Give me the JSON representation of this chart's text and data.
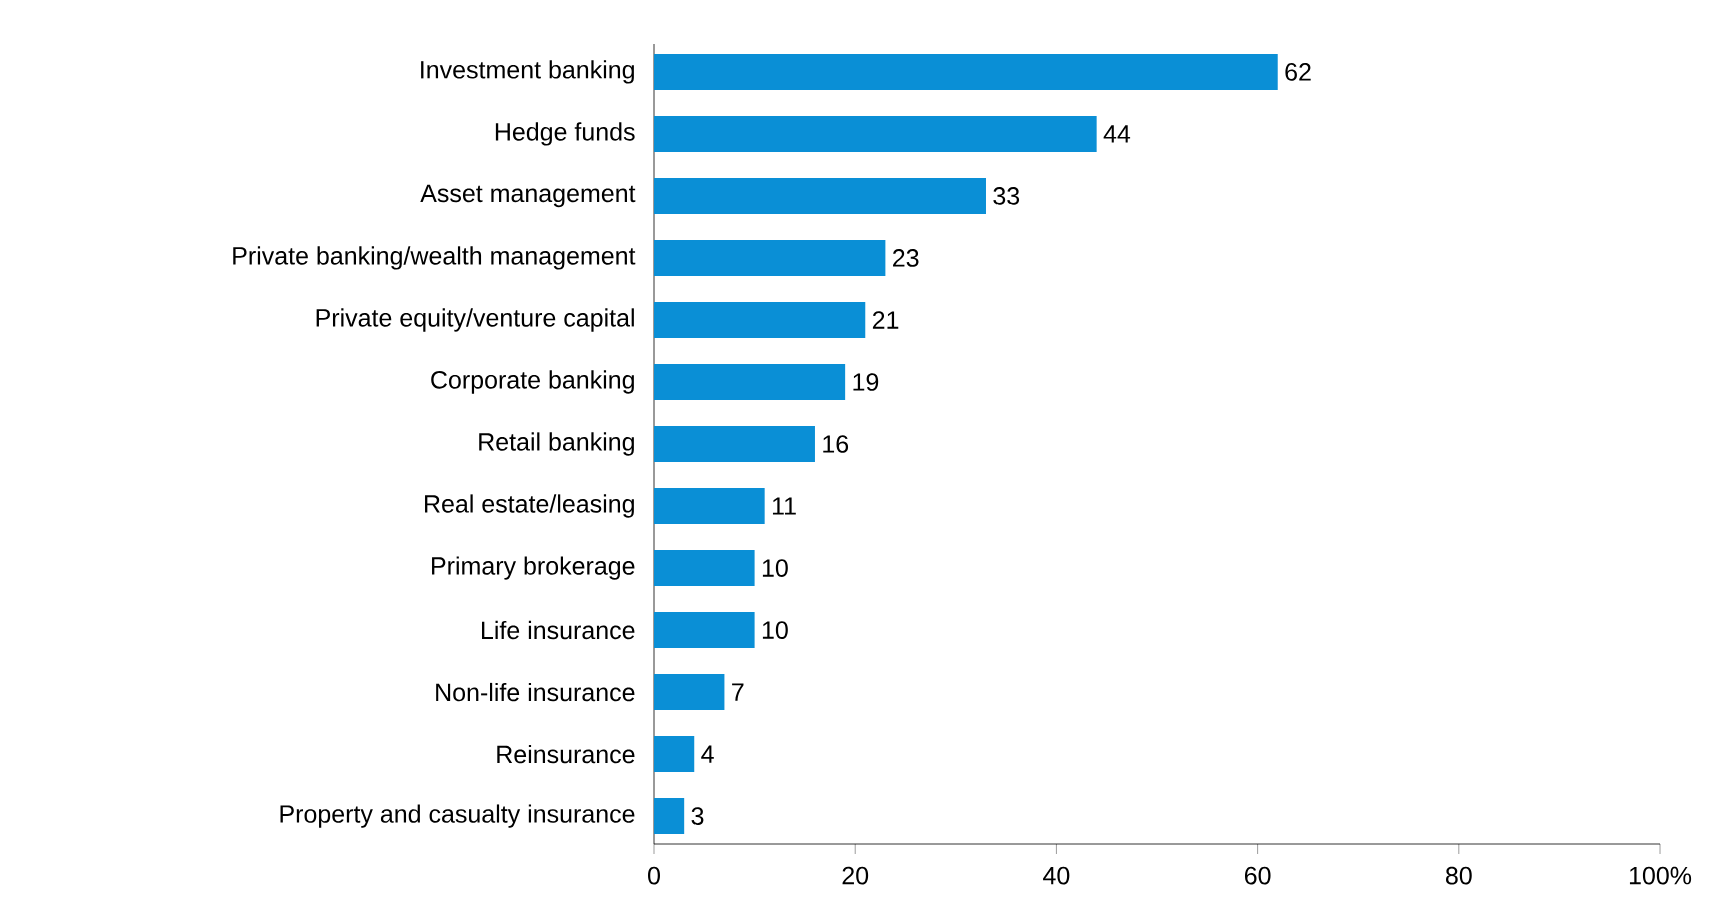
{
  "chart_data": {
    "type": "bar",
    "orientation": "horizontal",
    "categories": [
      "Investment banking",
      "Hedge funds",
      "Asset management",
      "Private banking/wealth management",
      "Private equity/venture capital",
      "Corporate banking",
      "Retail banking",
      "Real estate/leasing",
      "Primary brokerage",
      "Life insurance",
      "Non-life insurance",
      "Reinsurance",
      "Property and casualty insurance"
    ],
    "values": [
      62,
      44,
      33,
      23,
      21,
      19,
      16,
      11,
      10,
      10,
      7,
      4,
      3
    ],
    "color": "#0a8fd6",
    "data_labels": true,
    "grid": false,
    "xlim": [
      0,
      100
    ],
    "xticks": [
      0,
      20,
      40,
      60,
      80,
      {
        "value": 100,
        "label": "100%"
      }
    ]
  }
}
